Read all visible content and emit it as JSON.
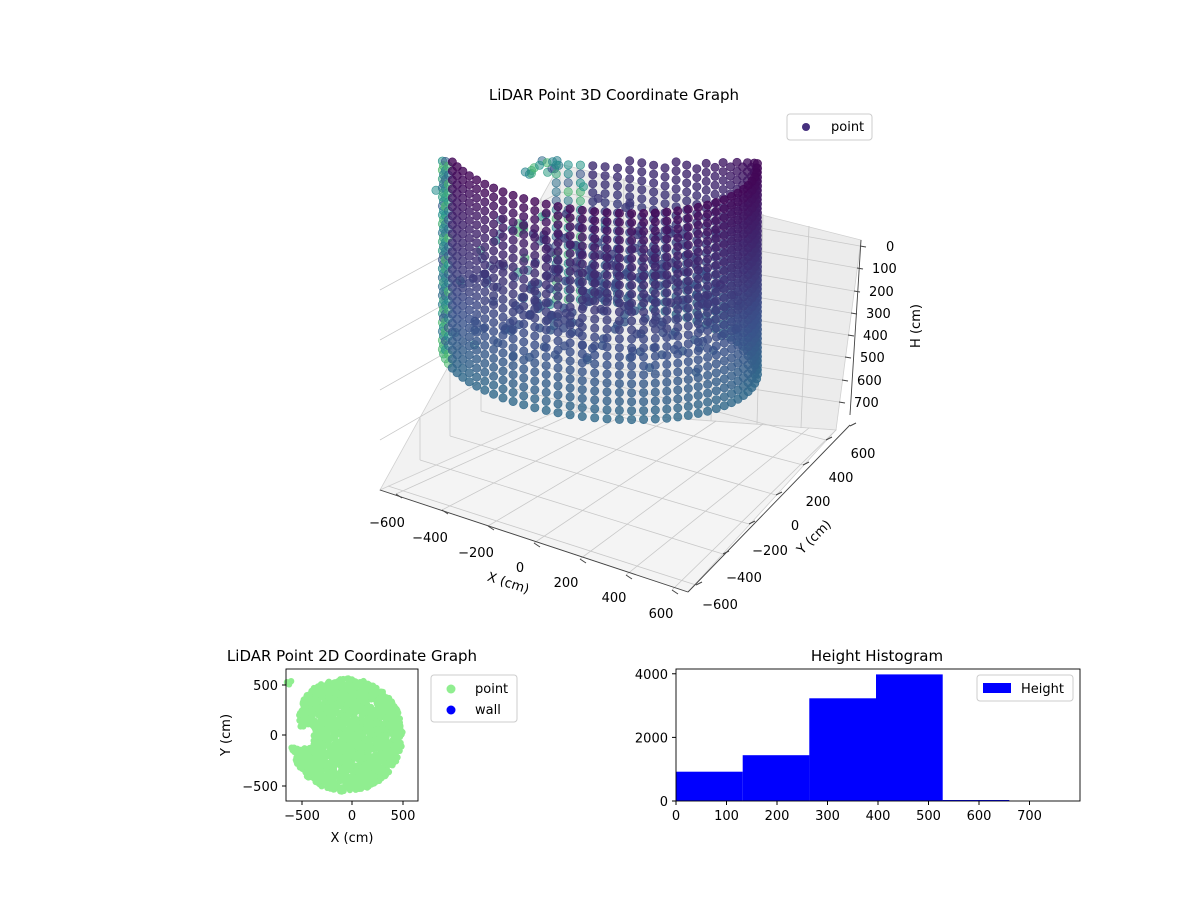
{
  "chart_data": [
    {
      "type": "scatter",
      "projection": "3d",
      "title": "LiDAR Point 3D Coordinate Graph",
      "xlabel": "X (cm)",
      "ylabel": "Y (cm)",
      "zlabel": "H (cm)",
      "xlim": [
        -650,
        650
      ],
      "ylim": [
        -650,
        650
      ],
      "zlim": [
        750,
        0
      ],
      "xticks": [
        "−600",
        "−400",
        "−200",
        "0",
        "200",
        "400",
        "600"
      ],
      "yticks": [
        "−600",
        "−400",
        "−200",
        "0",
        "200",
        "400",
        "600"
      ],
      "zticks": [
        "0",
        "100",
        "200",
        "300",
        "400",
        "500",
        "600",
        "700"
      ],
      "grid": true,
      "colormap": "viridis",
      "legend": {
        "placement": "top-right",
        "entries": [
          {
            "label": "point",
            "color": "#46307e"
          }
        ]
      },
      "series": [
        {
          "name": "point",
          "description_points": [
            {
              "x": -100,
              "y": 0,
              "h": 300
            },
            {
              "x": 0,
              "y": 600,
              "h": 0
            },
            {
              "x": 500,
              "y": 200,
              "h": 0
            },
            {
              "x": 500,
              "y": -300,
              "h": 650
            },
            {
              "x": -500,
              "y": -200,
              "h": 650
            },
            {
              "x": -650,
              "y": 500,
              "h": 150
            }
          ]
        }
      ]
    },
    {
      "type": "scatter",
      "title": "LiDAR Point 2D Coordinate Graph",
      "xlabel": "X (cm)",
      "ylabel": "Y (cm)",
      "xlim": [
        -650,
        650
      ],
      "ylim": [
        -650,
        650
      ],
      "xticks": [
        "−500",
        "0",
        "500"
      ],
      "yticks": [
        "−500",
        "0",
        "500"
      ],
      "legend": {
        "placement": "outside-right",
        "entries": [
          {
            "label": "point",
            "color": "#90ee90"
          },
          {
            "label": "wall",
            "color": "#0000ff"
          }
        ]
      },
      "series": [
        {
          "name": "point",
          "color": "#90ee90"
        },
        {
          "name": "wall",
          "color": "#0000ff"
        }
      ]
    },
    {
      "type": "bar",
      "subtype": "histogram",
      "title": "Height Histogram",
      "xlabel": "",
      "ylabel": "",
      "xlim": [
        0,
        800
      ],
      "ylim": [
        0,
        4150
      ],
      "xticks": [
        "0",
        "100",
        "200",
        "300",
        "400",
        "500",
        "600",
        "700"
      ],
      "yticks": [
        "0",
        "2000",
        "4000"
      ],
      "legend": {
        "placement": "top-right",
        "entries": [
          {
            "label": "Height",
            "color": "#0000ff"
          }
        ]
      },
      "series": [
        {
          "name": "Height",
          "color": "#0000ff",
          "bins": [
            0,
            132,
            264,
            396,
            528,
            660,
            792
          ],
          "values": [
            920,
            1440,
            3230,
            3980,
            30,
            0
          ]
        }
      ]
    }
  ]
}
